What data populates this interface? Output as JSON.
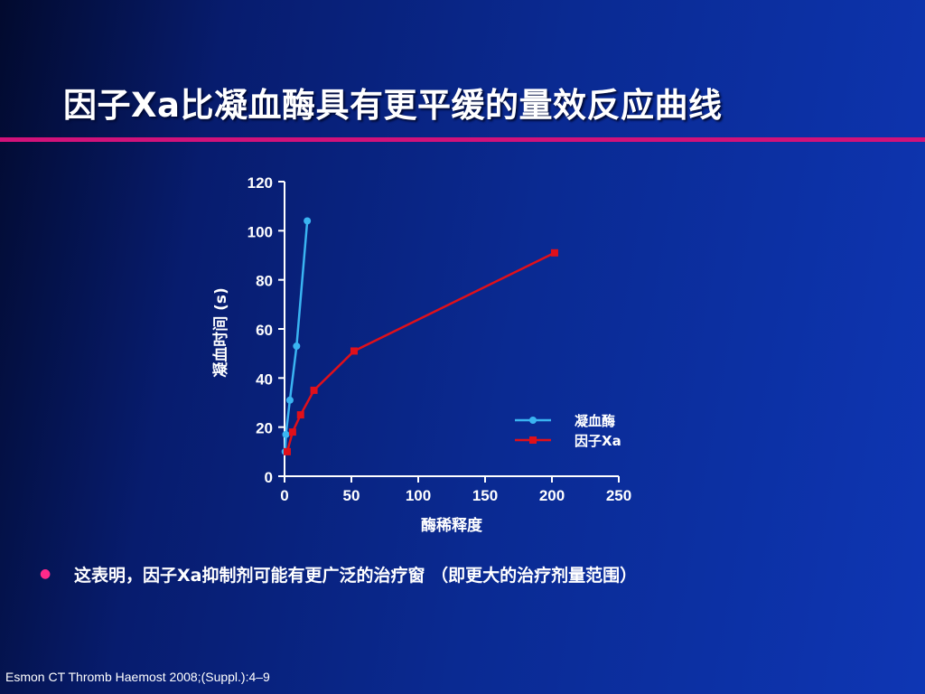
{
  "slide": {
    "title": "因子Xa比凝血酶具有更平缓的量效反应曲线",
    "bullet": "这表明，因子Xa抑制剂可能有更广泛的治疗窗 （即更大的治疗剂量范围）",
    "citation": "Esmon CT Thromb Haemost 2008;(Suppl.):4–9"
  },
  "colors": {
    "accent_rule": "#d1127a",
    "thrombin": "#3ab4f2",
    "factor_xa": "#e0101a"
  },
  "chart_data": {
    "type": "line",
    "xlabel": "酶稀释度",
    "ylabel": "凝血时间 (s)",
    "xlim": [
      0,
      250
    ],
    "ylim": [
      0,
      120
    ],
    "x_ticks": [
      0,
      50,
      100,
      150,
      200,
      250
    ],
    "y_ticks": [
      0,
      20,
      40,
      60,
      80,
      100,
      120
    ],
    "grid": false,
    "legend": "right",
    "series": [
      {
        "name": "凝血酶",
        "color": "#3ab4f2",
        "marker": "circle",
        "x": [
          0.5,
          1,
          4,
          9,
          17
        ],
        "y": [
          10,
          17,
          31,
          53,
          104
        ]
      },
      {
        "name": "因子Xa",
        "color": "#e0101a",
        "marker": "square",
        "x": [
          2,
          6,
          12,
          22,
          52,
          202
        ],
        "y": [
          10,
          18,
          25,
          35,
          51,
          91
        ]
      }
    ]
  }
}
